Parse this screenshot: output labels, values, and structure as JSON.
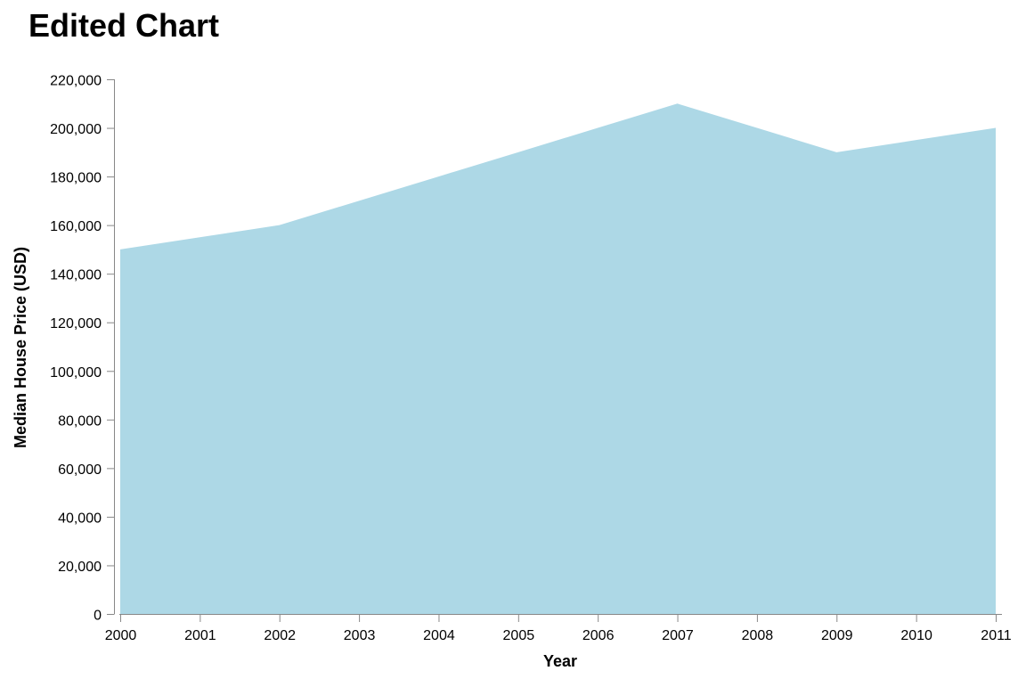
{
  "chart_data": {
    "type": "area",
    "title": "Edited Chart",
    "xlabel": "Year",
    "ylabel": "Median House Price (USD)",
    "x": [
      2000,
      2001,
      2002,
      2003,
      2004,
      2005,
      2006,
      2007,
      2008,
      2009,
      2010,
      2011
    ],
    "values": [
      150000,
      155000,
      160000,
      170000,
      180000,
      190000,
      200000,
      210000,
      200000,
      190000,
      195000,
      200000
    ],
    "xlim": [
      2000,
      2011
    ],
    "ylim": [
      0,
      220000
    ],
    "x_ticks": [
      "2000",
      "2001",
      "2002",
      "2003",
      "2004",
      "2005",
      "2006",
      "2007",
      "2008",
      "2009",
      "2010",
      "2011"
    ],
    "y_ticks": [
      "0",
      "20,000",
      "40,000",
      "60,000",
      "80,000",
      "100,000",
      "120,000",
      "140,000",
      "160,000",
      "180,000",
      "200,000",
      "220,000"
    ],
    "y_tick_values": [
      0,
      20000,
      40000,
      60000,
      80000,
      100000,
      120000,
      140000,
      160000,
      180000,
      200000,
      220000
    ],
    "grid": false,
    "fill_color": "#add8e6",
    "axis_color": "#888888"
  }
}
